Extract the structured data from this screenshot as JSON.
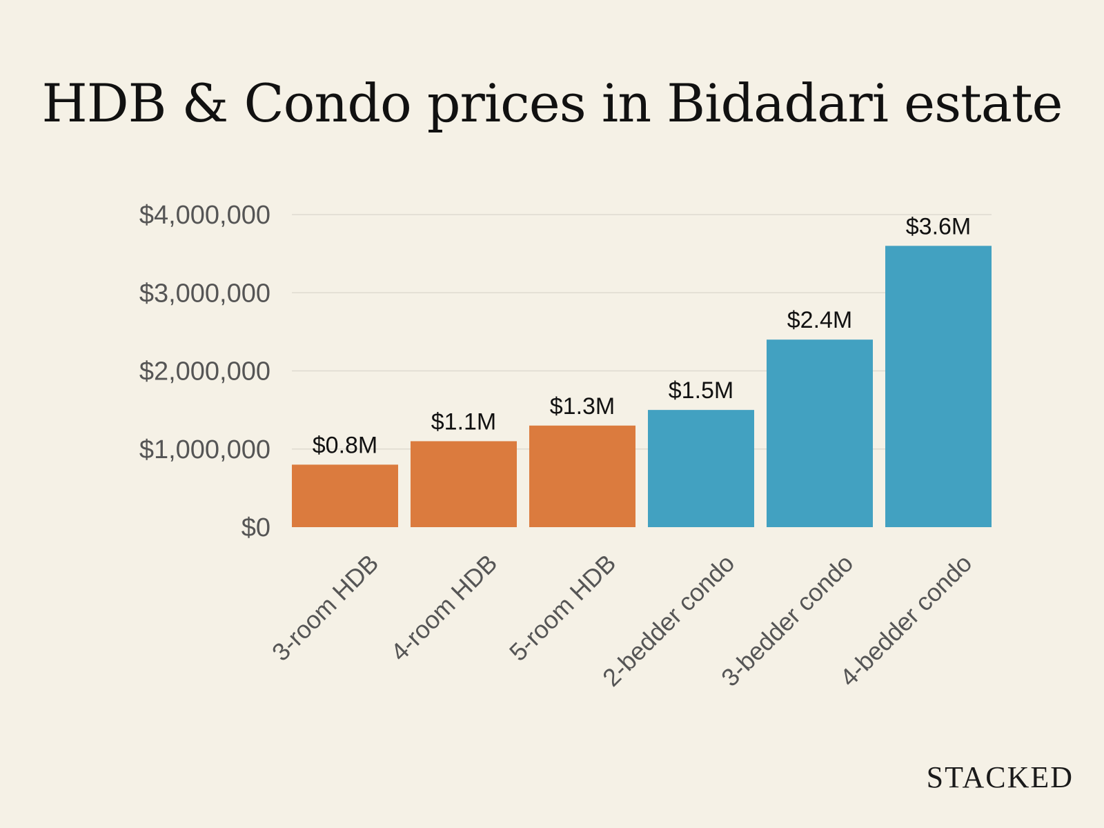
{
  "colors": {
    "background": "#f5f1e6",
    "title": "#111111",
    "tick_text": "#555555",
    "label_text": "#111111",
    "grid": "#dedad0",
    "hdb": "#db7b3e",
    "condo": "#42a1c1",
    "brand": "#1a1a1a"
  },
  "brand": "STACKED",
  "chart_data": {
    "type": "bar",
    "title": "HDB & Condo prices in Bidadari estate",
    "xlabel": "",
    "ylabel": "",
    "categories": [
      "3-room HDB",
      "4-room HDB",
      "5-room HDB",
      "2-bedder condo",
      "3-bedder condo",
      "4-bedder condo"
    ],
    "values": [
      800000,
      1100000,
      1300000,
      1500000,
      2400000,
      3600000
    ],
    "data_labels": [
      "$0.8M",
      "$1.1M",
      "$1.3M",
      "$1.5M",
      "$2.4M",
      "$3.6M"
    ],
    "groups": [
      "HDB",
      "HDB",
      "HDB",
      "Condo",
      "Condo",
      "Condo"
    ],
    "ylim": [
      0,
      4000000
    ],
    "yticks": [
      0,
      1000000,
      2000000,
      3000000,
      4000000
    ],
    "ytick_labels": [
      "$0",
      "$1,000,000",
      "$2,000,000",
      "$3,000,000",
      "$4,000,000"
    ],
    "grid": true,
    "legend": "none"
  }
}
